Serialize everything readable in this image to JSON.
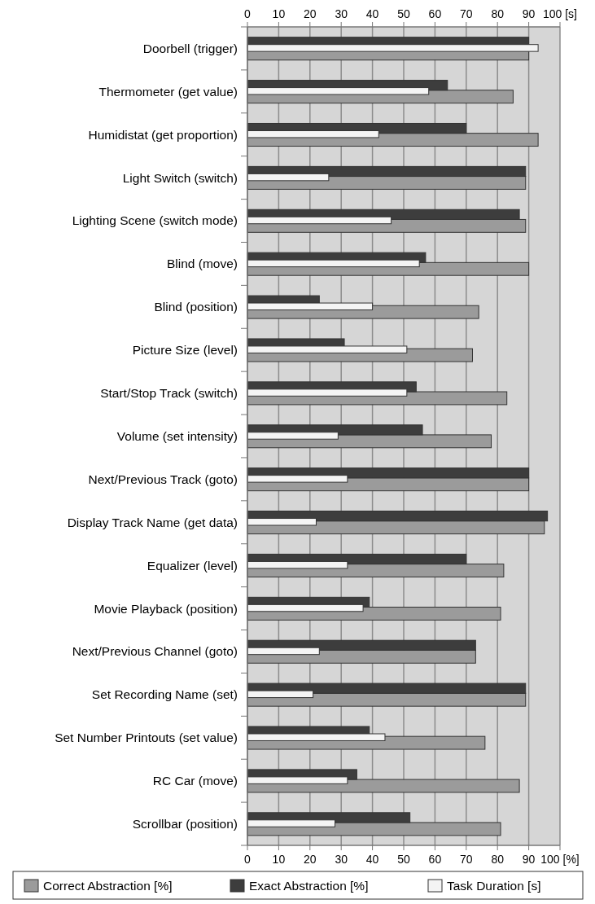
{
  "chart_data": {
    "type": "bar",
    "orientation": "horizontal",
    "categories": [
      "Doorbell (trigger)",
      "Thermometer (get value)",
      "Humidistat (get proportion)",
      "Light Switch (switch)",
      "Lighting Scene (switch mode)",
      "Blind (move)",
      "Blind (position)",
      "Picture Size (level)",
      "Start/Stop Track (switch)",
      "Volume (set intensity)",
      "Next/Previous Track (goto)",
      "Display Track Name (get data)",
      "Equalizer (level)",
      "Movie Playback (position)",
      "Next/Previous Channel (goto)",
      "Set Recording Name (set)",
      "Set Number Printouts (set value)",
      "RC Car (move)",
      "Scrollbar (position)"
    ],
    "series": [
      {
        "name": "Correct Abstraction [%]",
        "color": "#9b9b9b",
        "values": [
          90,
          85,
          93,
          89,
          89,
          90,
          74,
          72,
          83,
          78,
          90,
          95,
          82,
          81,
          73,
          89,
          76,
          87,
          81
        ]
      },
      {
        "name": "Exact Abstraction [%]",
        "color": "#3d3d3d",
        "values": [
          90,
          64,
          70,
          89,
          87,
          57,
          23,
          31,
          54,
          56,
          90,
          96,
          70,
          39,
          73,
          89,
          39,
          35,
          52
        ]
      },
      {
        "name": "Task Duration [s]",
        "color": "#f4f4f4",
        "axis": "x2",
        "values": [
          93,
          58,
          42,
          26,
          46,
          55,
          40,
          51,
          51,
          29,
          32,
          22,
          32,
          37,
          23,
          21,
          44,
          32,
          28
        ]
      }
    ],
    "xlim": [
      0,
      100
    ],
    "xticks": [
      0,
      10,
      20,
      30,
      40,
      50,
      60,
      70,
      80,
      90,
      {
        "value": 100,
        "label": "100 [%]"
      }
    ],
    "x2lim": [
      0,
      100
    ],
    "x2ticks": [
      0,
      10,
      20,
      30,
      40,
      50,
      60,
      70,
      80,
      90,
      {
        "value": 100,
        "label": "100 [s]"
      }
    ],
    "grid": "x",
    "legend": "bottom"
  }
}
